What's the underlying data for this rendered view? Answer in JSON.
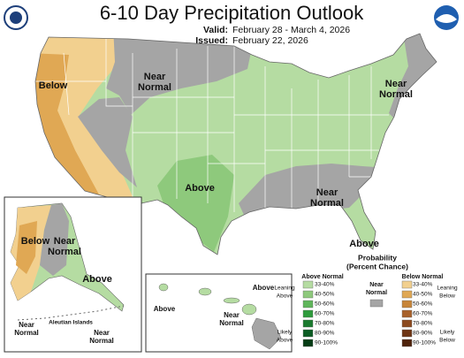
{
  "header": {
    "title": "6-10 Day Precipitation Outlook",
    "valid_label": "Valid:",
    "valid": "February 28 - March 4, 2026",
    "issued_label": "Issued:",
    "issued": "February 22, 2026"
  },
  "map_labels": [
    {
      "lines": [
        "Below"
      ]
    },
    {
      "lines": [
        "Near",
        "Normal"
      ]
    },
    {
      "lines": [
        "Near",
        "Normal"
      ]
    },
    {
      "lines": [
        "Above"
      ]
    },
    {
      "lines": [
        "Near",
        "Normal"
      ]
    },
    {
      "lines": [
        "Above"
      ]
    }
  ],
  "alaska": {
    "labels": [
      {
        "lines": [
          "Below"
        ]
      },
      {
        "lines": [
          "Near",
          "Normal"
        ]
      },
      {
        "lines": [
          "Above"
        ]
      },
      {
        "lines": [
          "Near",
          "Normal"
        ]
      },
      {
        "lines": [
          "Near",
          "Normal"
        ]
      }
    ],
    "aleutian": "Aleutian Islands"
  },
  "hawaii": {
    "labels": [
      {
        "lines": [
          "Above"
        ]
      },
      {
        "lines": [
          "Above"
        ]
      },
      {
        "lines": [
          "Near",
          "Normal"
        ]
      }
    ]
  },
  "legend": {
    "title": [
      "Probability",
      "(Percent Chance)"
    ],
    "above": {
      "heading": "Above Normal",
      "side": [
        [
          "Leaning",
          "Above"
        ],
        [
          "Likely",
          "Above"
        ]
      ],
      "entries": [
        {
          "label": "33-40%",
          "color": "#b5dca2"
        },
        {
          "label": "40-50%",
          "color": "#8ec97c"
        },
        {
          "label": "50-60%",
          "color": "#5fb55a"
        },
        {
          "label": "60-70%",
          "color": "#2e9b3c"
        },
        {
          "label": "70-80%",
          "color": "#1a7a2e"
        },
        {
          "label": "80-90%",
          "color": "#0b5c23"
        },
        {
          "label": "90-100%",
          "color": "#053d15"
        }
      ]
    },
    "near": {
      "heading": [
        "Near",
        "Normal"
      ],
      "color": "#a5a5a5"
    },
    "below": {
      "heading": "Below Normal",
      "side": [
        [
          "Leaning",
          "Below"
        ],
        [
          "Likely",
          "Below"
        ]
      ],
      "entries": [
        {
          "label": "33-40%",
          "color": "#f2d08f"
        },
        {
          "label": "40-50%",
          "color": "#e0a854"
        },
        {
          "label": "50-60%",
          "color": "#c7853a"
        },
        {
          "label": "60-70%",
          "color": "#a8612a"
        },
        {
          "label": "70-80%",
          "color": "#8c4a1f"
        },
        {
          "label": "80-90%",
          "color": "#6e3514"
        },
        {
          "label": "90-100%",
          "color": "#4f230b"
        }
      ]
    }
  }
}
